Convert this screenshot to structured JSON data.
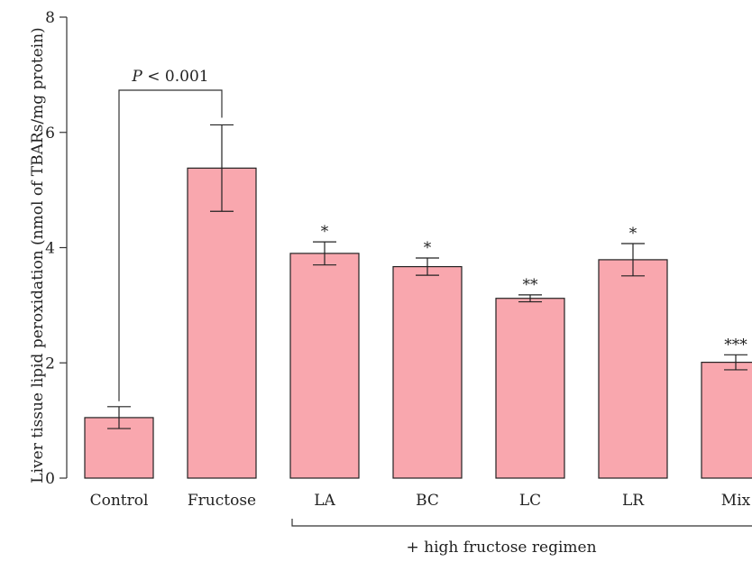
{
  "chart_data": {
    "type": "bar",
    "categories": [
      "Control",
      "Fructose",
      "LA",
      "BC",
      "LC",
      "LR",
      "Mix"
    ],
    "values": [
      1.05,
      5.38,
      3.9,
      3.67,
      3.12,
      3.79,
      2.01
    ],
    "errors": [
      0.19,
      0.75,
      0.2,
      0.15,
      0.06,
      0.28,
      0.13
    ],
    "significance": [
      "",
      "",
      "*",
      "*",
      "**",
      "*",
      "***"
    ],
    "ylabel": "Liver tissue lipid peroxidation (nmol of TBARs/mg protein)",
    "ylim": [
      0,
      8
    ],
    "yticks": [
      0,
      2,
      4,
      6,
      8
    ],
    "bar_color": "#f9a7ae",
    "bracket_label_p": "P",
    "bracket_label_rest": " < 0.001",
    "group_label": "+ high fructose regimen",
    "grid": false
  }
}
